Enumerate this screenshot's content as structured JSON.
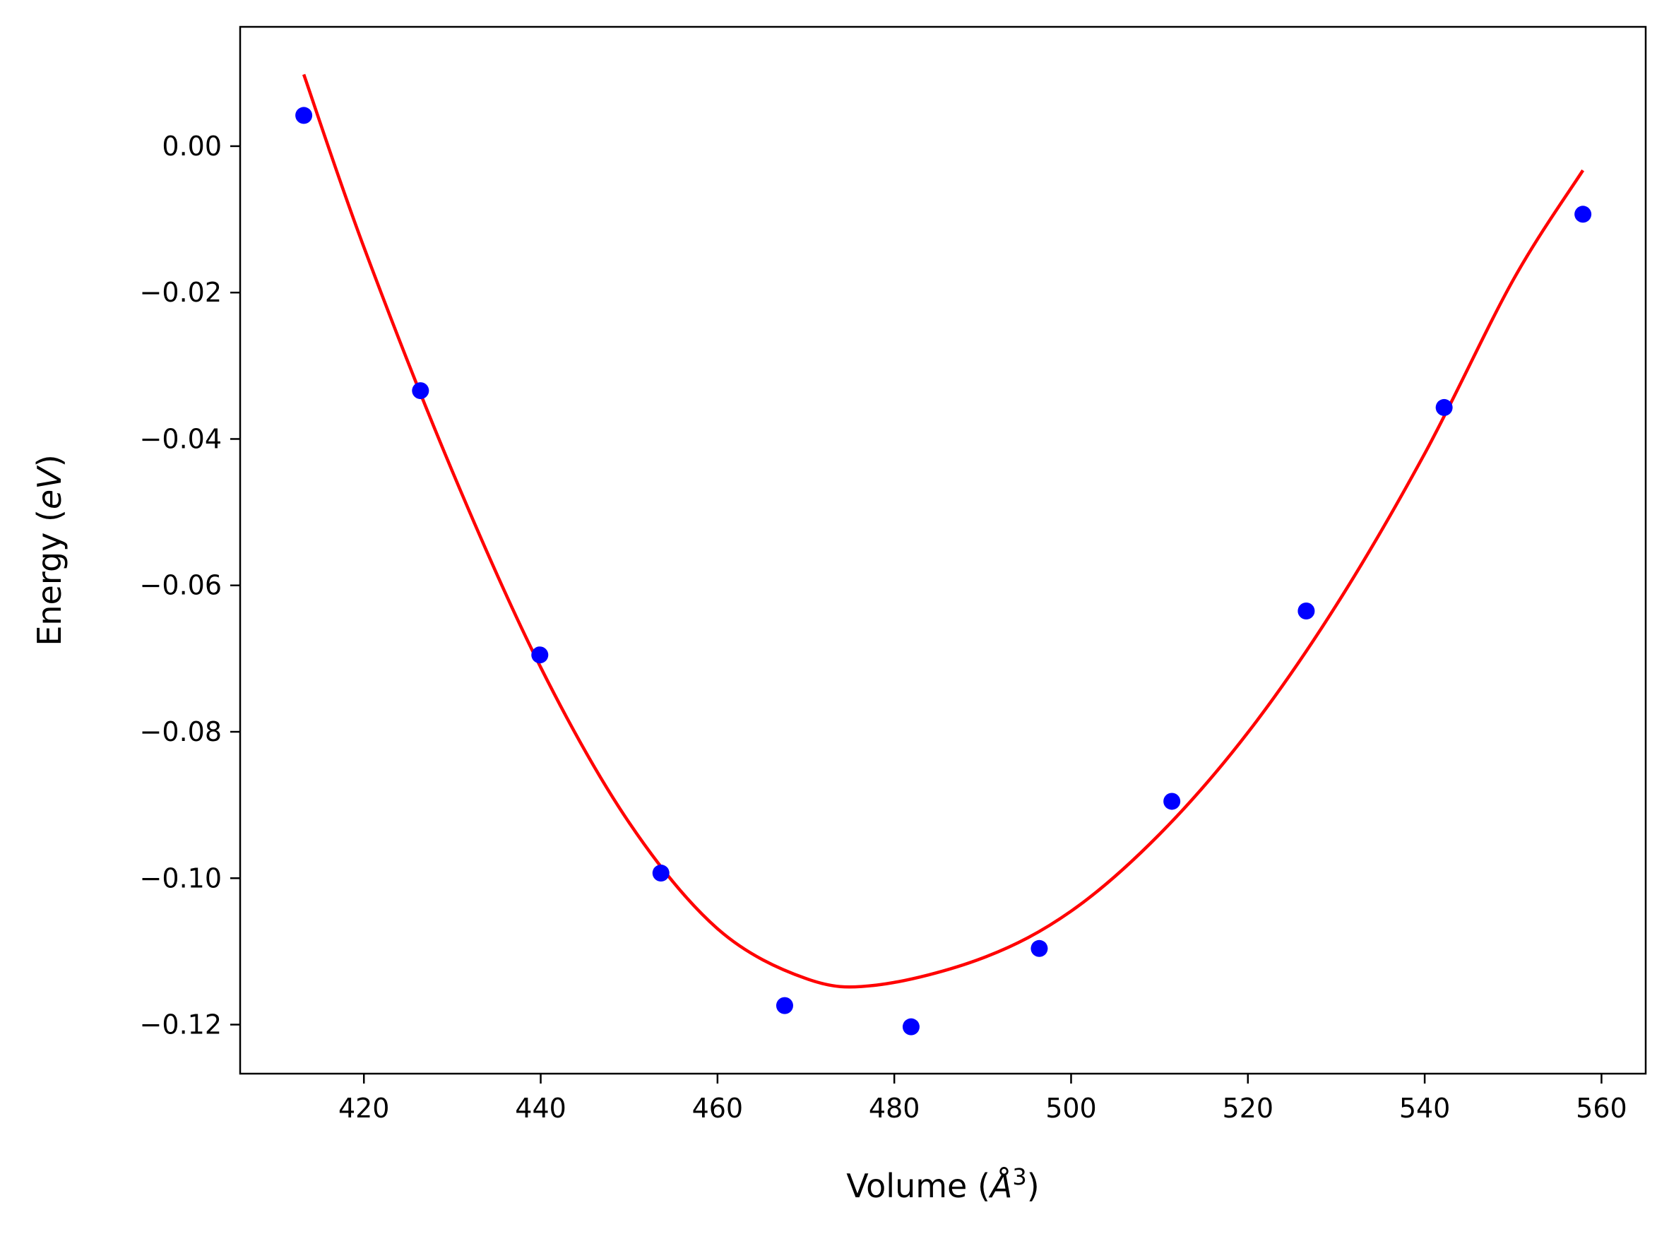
{
  "chart_data": {
    "type": "scatter",
    "xlabel": "Volume",
    "xlabel_math": "Å",
    "xlabel_sup": "3",
    "ylabel": "Energy",
    "ylabel_math": "eV",
    "xlim": [
      406,
      565
    ],
    "ylim": [
      -0.1267,
      0.0163
    ],
    "xticks": [
      420,
      440,
      460,
      480,
      500,
      520,
      540,
      560
    ],
    "xtick_labels": [
      "420",
      "440",
      "460",
      "480",
      "500",
      "520",
      "540",
      "560"
    ],
    "yticks": [
      0.0,
      -0.02,
      -0.04,
      -0.06,
      -0.08,
      -0.1,
      -0.12
    ],
    "ytick_labels": [
      "0.00",
      "−0.02",
      "−0.04",
      "−0.06",
      "−0.08",
      "−0.10",
      "−0.12"
    ],
    "grid": false,
    "series": [
      {
        "kind": "points",
        "color": "#0000ff",
        "x": [
          413.2,
          426.4,
          439.9,
          453.6,
          467.6,
          481.9,
          496.4,
          511.4,
          526.6,
          542.2,
          557.9
        ],
        "y": [
          0.0042,
          -0.0334,
          -0.0695,
          -0.0993,
          -0.1174,
          -0.1203,
          -0.1096,
          -0.0895,
          -0.0635,
          -0.0357,
          -0.0093
        ]
      },
      {
        "kind": "fit-curve",
        "color": "#ff0000",
        "x": [
          413.2,
          420,
          430,
          440,
          450,
          460,
          470,
          478,
          490,
          500,
          510,
          520,
          530,
          540,
          550,
          557.9
        ],
        "y": [
          0.0098,
          -0.0138,
          -0.0444,
          -0.0712,
          -0.0924,
          -0.1069,
          -0.1137,
          -0.1146,
          -0.1109,
          -0.1045,
          -0.094,
          -0.0801,
          -0.0627,
          -0.042,
          -0.0183,
          -0.0033
        ]
      }
    ]
  }
}
